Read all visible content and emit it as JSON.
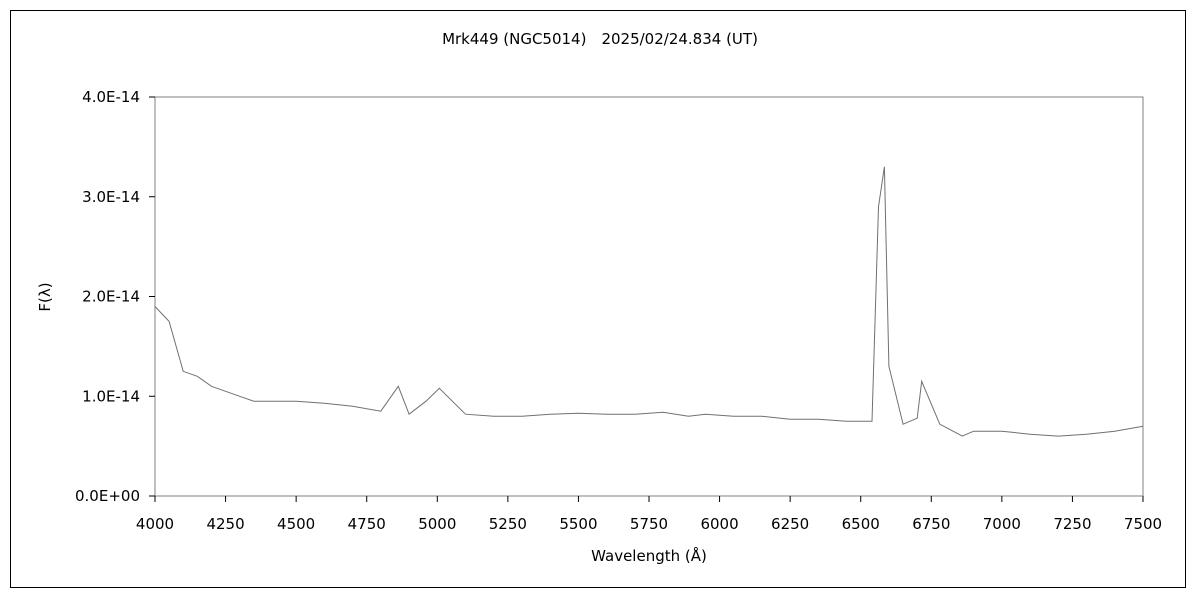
{
  "chart_data": {
    "type": "line",
    "title": "Mrk449 (NGC5014)　2025/02/24.834 (UT)",
    "xlabel": "Wavelength (Å)",
    "ylabel": "F(λ)",
    "xlim": [
      4000,
      7500
    ],
    "ylim": [
      0,
      4e-14
    ],
    "x_ticks": [
      4000,
      4250,
      4500,
      4750,
      5000,
      5250,
      5500,
      5750,
      6000,
      6250,
      6500,
      6750,
      7000,
      7250,
      7500
    ],
    "x_tick_labels": [
      "4000",
      "4250",
      "4500",
      "4750",
      "5000",
      "5250",
      "5500",
      "5750",
      "6000",
      "6250",
      "6500",
      "6750",
      "7000",
      "7250",
      "7500"
    ],
    "y_ticks": [
      0,
      1e-14,
      2e-14,
      3e-14,
      4e-14
    ],
    "y_tick_labels": [
      "0.0E+00",
      "1.0E-14",
      "2.0E-14",
      "3.0E-14",
      "4.0E-14"
    ],
    "grid": false,
    "line_color": "#707070",
    "series": [
      {
        "x": [
          4000,
          4050,
          4100,
          4150,
          4200,
          4250,
          4300,
          4350,
          4400,
          4500,
          4600,
          4700,
          4800,
          4862,
          4900,
          4960,
          5007,
          5100,
          5200,
          5300,
          5400,
          5500,
          5600,
          5700,
          5800,
          5890,
          5950,
          6050,
          6150,
          6250,
          6350,
          6450,
          6540,
          6563,
          6584,
          6600,
          6650,
          6700,
          6716,
          6731,
          6780,
          6860,
          6900,
          7000,
          7100,
          7200,
          7300,
          7400,
          7500
        ],
        "y": [
          1.9e-14,
          1.75e-14,
          1.25e-14,
          1.2e-14,
          1.1e-14,
          1.05e-14,
          1e-14,
          9.5e-15,
          9.5e-15,
          9.5e-15,
          9.3e-15,
          9e-15,
          8.5e-15,
          1.1e-14,
          8.2e-15,
          9.5e-15,
          1.08e-14,
          8.2e-15,
          8e-15,
          8e-15,
          8.2e-15,
          8.3e-15,
          8.2e-15,
          8.2e-15,
          8.4e-15,
          8e-15,
          8.2e-15,
          8e-15,
          8e-15,
          7.7e-15,
          7.7e-15,
          7.5e-15,
          7.5e-15,
          2.9e-14,
          3.3e-14,
          1.3e-14,
          7.2e-15,
          7.8e-15,
          1.15e-14,
          1.05e-14,
          7.2e-15,
          6e-15,
          6.5e-15,
          6.5e-15,
          6.2e-15,
          6e-15,
          6.2e-15,
          6.5e-15,
          7e-15
        ]
      }
    ]
  }
}
